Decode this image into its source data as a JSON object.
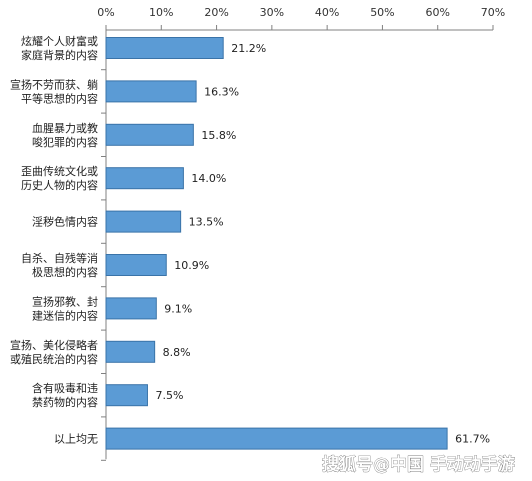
{
  "chart_data": {
    "type": "bar",
    "orientation": "horizontal",
    "title": "",
    "xlabel": "",
    "ylabel": "",
    "xlim": [
      0,
      70
    ],
    "x_ticks": [
      0,
      10,
      20,
      30,
      40,
      50,
      60,
      70
    ],
    "x_tick_labels": [
      "0%",
      "10%",
      "20%",
      "30%",
      "40%",
      "50%",
      "60%",
      "70%"
    ],
    "axis_position": "top",
    "grid": false,
    "legend": "none",
    "bar_color": "#5b9bd5",
    "bar_edge_color": "#3a73a8",
    "categories": [
      [
        "炫耀个人财富或",
        "家庭背景的内容"
      ],
      [
        "宣扬不劳而获、躺",
        "平等思想的内容"
      ],
      [
        "血腥暴力或教",
        "唆犯罪的内容"
      ],
      [
        "歪曲传统文化或",
        "历史人物的内容"
      ],
      [
        "淫秽色情内容"
      ],
      [
        "自杀、自残等消",
        "极思想的内容"
      ],
      [
        "宣扬邪教、封",
        "建迷信的内容"
      ],
      [
        "宣扬、美化侵略者",
        "或殖民统治的内容"
      ],
      [
        "含有吸毒和违",
        "禁药物的内容"
      ],
      [
        "以上均无"
      ]
    ],
    "values": [
      21.2,
      16.3,
      15.8,
      14.0,
      13.5,
      10.9,
      9.1,
      8.8,
      7.5,
      61.7
    ],
    "value_labels": [
      "21.2%",
      "16.3%",
      "15.8%",
      "14.0%",
      "13.5%",
      "10.9%",
      "9.1%",
      "8.8%",
      "7.5%",
      "61.7%"
    ]
  },
  "watermark": {
    "text": "搜狐号@中国   手动动手游"
  }
}
